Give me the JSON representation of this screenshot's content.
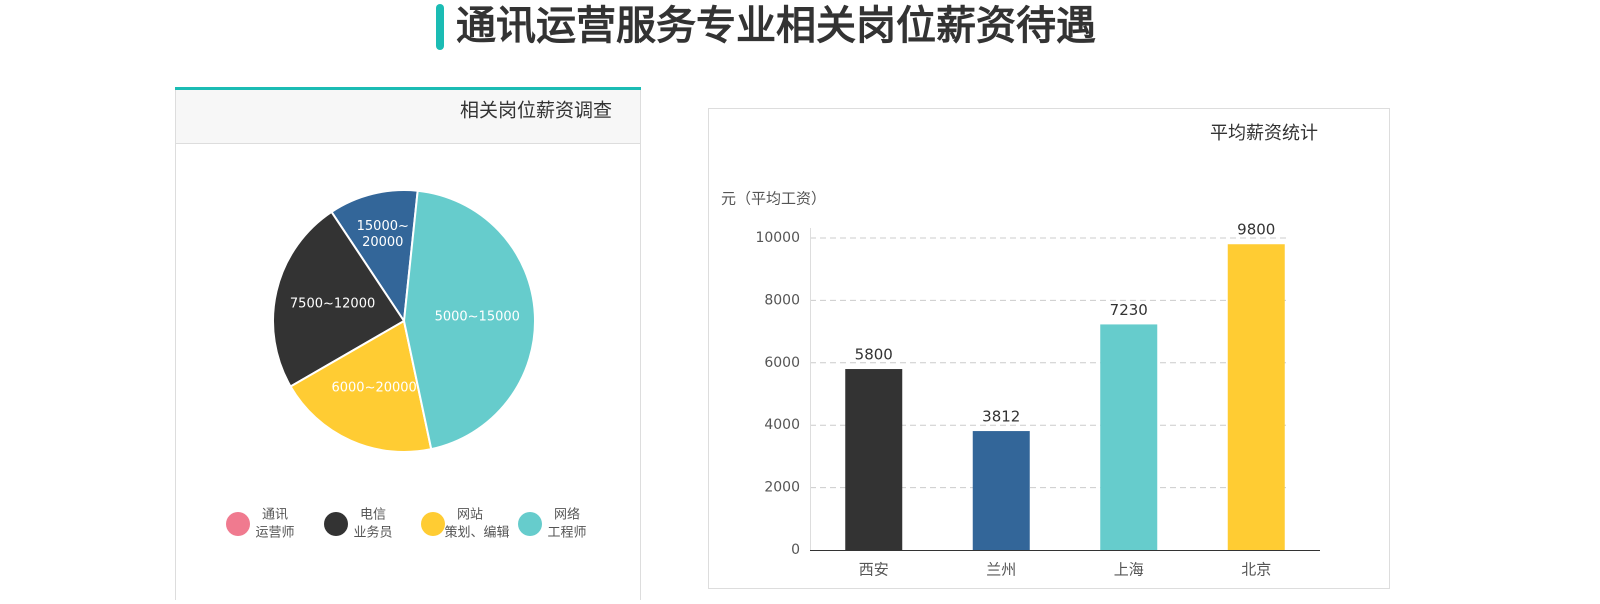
{
  "page_title": "通讯运营服务专业相关岗位薪资待遇",
  "chart_data": [
    {
      "type": "pie",
      "title": "相关岗位薪资调查",
      "slices": [
        {
          "label_lines": [
            "15000~",
            "20000"
          ],
          "value": 11,
          "color": "#336699"
        },
        {
          "label_lines": [
            "7500~12000"
          ],
          "value": 24,
          "color": "#333333"
        },
        {
          "label_lines": [
            "6000~20000"
          ],
          "value": 20,
          "color": "#ffcc33"
        },
        {
          "label_lines": [
            "5000~15000"
          ],
          "value": 45,
          "color": "#66cccc"
        }
      ],
      "legend": [
        {
          "lines": [
            "通讯",
            "运营师"
          ],
          "color": "#f07a8f"
        },
        {
          "lines": [
            "电信",
            "业务员"
          ],
          "color": "#333333"
        },
        {
          "lines": [
            "网站",
            "策划、编辑"
          ],
          "color": "#ffcc33"
        },
        {
          "lines": [
            "网络",
            "工程师"
          ],
          "color": "#66cccc"
        }
      ]
    },
    {
      "type": "bar",
      "title": "平均薪资统计",
      "y_label": "元（平均工资）",
      "categories": [
        "西安",
        "兰州",
        "上海",
        "北京"
      ],
      "values": [
        5800,
        3812,
        7230,
        9800
      ],
      "colors": [
        "#333333",
        "#336699",
        "#66cccc",
        "#ffcc33"
      ],
      "ylim": [
        0,
        10000
      ],
      "yticks": [
        0,
        2000,
        4000,
        6000,
        8000,
        10000
      ],
      "grid": true
    }
  ]
}
